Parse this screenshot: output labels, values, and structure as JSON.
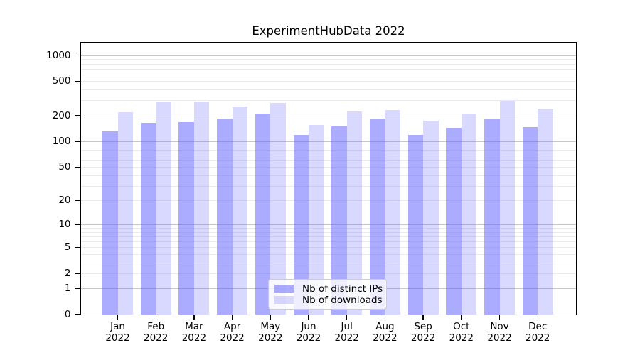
{
  "chart_data": {
    "type": "bar",
    "title": "ExperimentHubData 2022",
    "categories": [
      {
        "month": "Jan",
        "year": "2022"
      },
      {
        "month": "Feb",
        "year": "2022"
      },
      {
        "month": "Mar",
        "year": "2022"
      },
      {
        "month": "Apr",
        "year": "2022"
      },
      {
        "month": "May",
        "year": "2022"
      },
      {
        "month": "Jun",
        "year": "2022"
      },
      {
        "month": "Jul",
        "year": "2022"
      },
      {
        "month": "Aug",
        "year": "2022"
      },
      {
        "month": "Sep",
        "year": "2022"
      },
      {
        "month": "Oct",
        "year": "2022"
      },
      {
        "month": "Nov",
        "year": "2022"
      },
      {
        "month": "Dec",
        "year": "2022"
      }
    ],
    "series": [
      {
        "name": "Nb of distinct IPs",
        "color": "#6666ff",
        "alpha": 0.55,
        "values": [
          132,
          164,
          167,
          184,
          211,
          119,
          149,
          186,
          118,
          145,
          181,
          148
        ]
      },
      {
        "name": "Nb of downloads",
        "color": "#6666ff",
        "alpha": 0.25,
        "values": [
          220,
          286,
          290,
          255,
          281,
          155,
          223,
          233,
          175,
          211,
          296,
          240
        ]
      }
    ],
    "y_axis": {
      "scale": "log1p",
      "ticks": [
        0,
        1,
        2,
        5,
        10,
        20,
        50,
        100,
        200,
        500,
        1000
      ]
    },
    "grid": {
      "major_at": [
        1,
        10,
        100,
        1000
      ],
      "minor_bases": [
        1,
        10,
        100
      ],
      "major_color": "#c6c6c6",
      "minor_color": "#ebebeb"
    },
    "legend_position": "lower center-right",
    "xlabel": "",
    "ylabel": ""
  }
}
